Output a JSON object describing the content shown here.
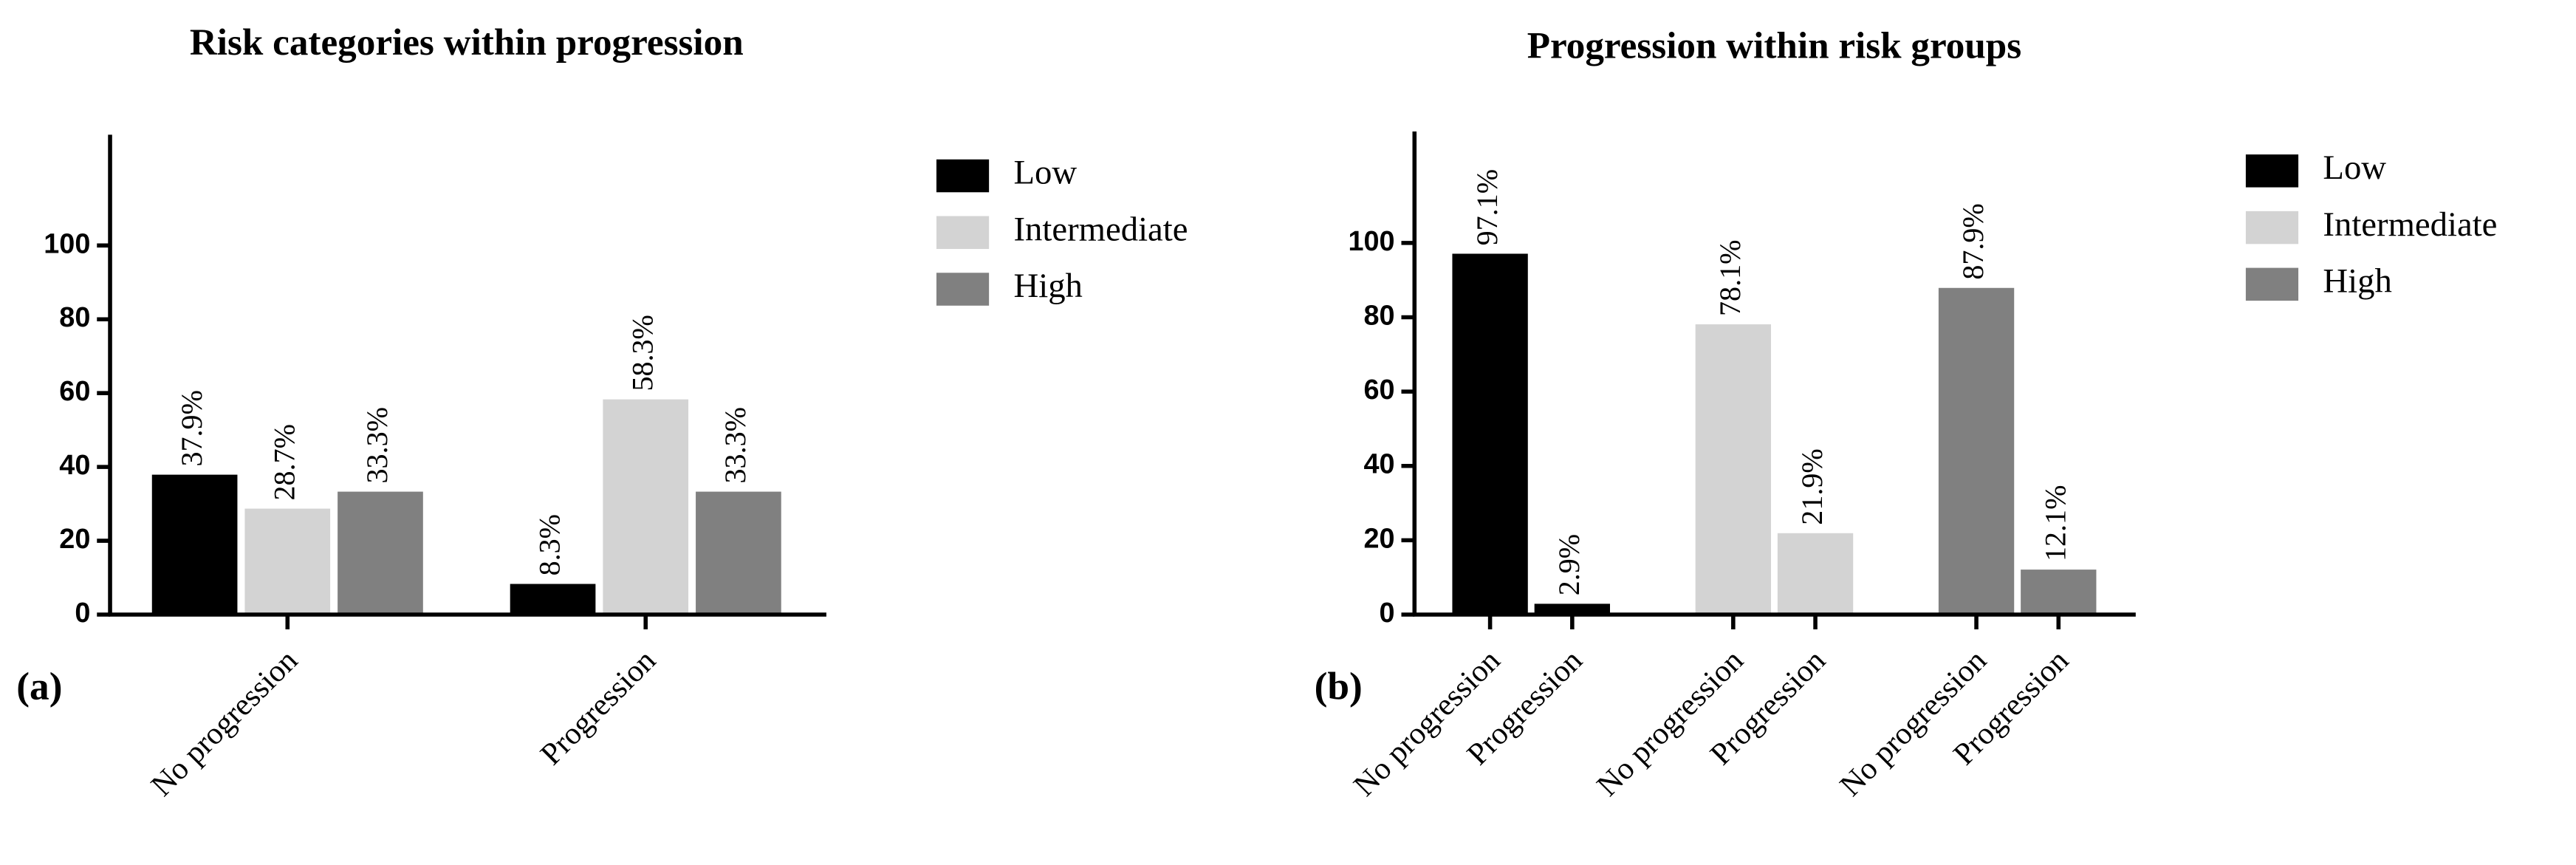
{
  "chart_data": [
    {
      "type": "bar",
      "title": "Risk categories within progression",
      "panel_label": "(a)",
      "categories": [
        "No progression",
        "Progression"
      ],
      "series": [
        {
          "name": "Low",
          "color": "#000000",
          "values": [
            37.9,
            8.3
          ],
          "value_labels": [
            "37.9%",
            "8.3%"
          ]
        },
        {
          "name": "Intermediate",
          "color": "#d3d3d3",
          "values": [
            28.7,
            58.3
          ],
          "value_labels": [
            "28.7%",
            "58.3%"
          ]
        },
        {
          "name": "High",
          "color": "#808080",
          "values": [
            33.3,
            33.3
          ],
          "value_labels": [
            "33.3%",
            "33.3%"
          ]
        }
      ],
      "ylim": [
        0,
        130
      ],
      "yticks": [
        0,
        20,
        40,
        60,
        80,
        100
      ]
    },
    {
      "type": "bar",
      "title": "Progression within risk groups",
      "panel_label": "(b)",
      "categories": [
        "No progression",
        "Progression",
        "No progression",
        "Progression",
        "No progression",
        "Progression"
      ],
      "series": [
        {
          "name": "Low",
          "color": "#000000",
          "values": [
            97.1,
            2.9,
            null,
            null,
            null,
            null
          ],
          "value_labels": [
            "97.1%",
            "2.9%",
            null,
            null,
            null,
            null
          ]
        },
        {
          "name": "Intermediate",
          "color": "#d3d3d3",
          "values": [
            null,
            null,
            78.1,
            21.9,
            null,
            null
          ],
          "value_labels": [
            null,
            null,
            "78.1%",
            "21.9%",
            null,
            null
          ]
        },
        {
          "name": "High",
          "color": "#808080",
          "values": [
            null,
            null,
            null,
            null,
            87.9,
            12.1
          ],
          "value_labels": [
            null,
            null,
            null,
            null,
            "87.9%",
            "12.1%"
          ]
        }
      ],
      "ylim": [
        0,
        130
      ],
      "yticks": [
        0,
        20,
        40,
        60,
        80,
        100
      ]
    }
  ]
}
